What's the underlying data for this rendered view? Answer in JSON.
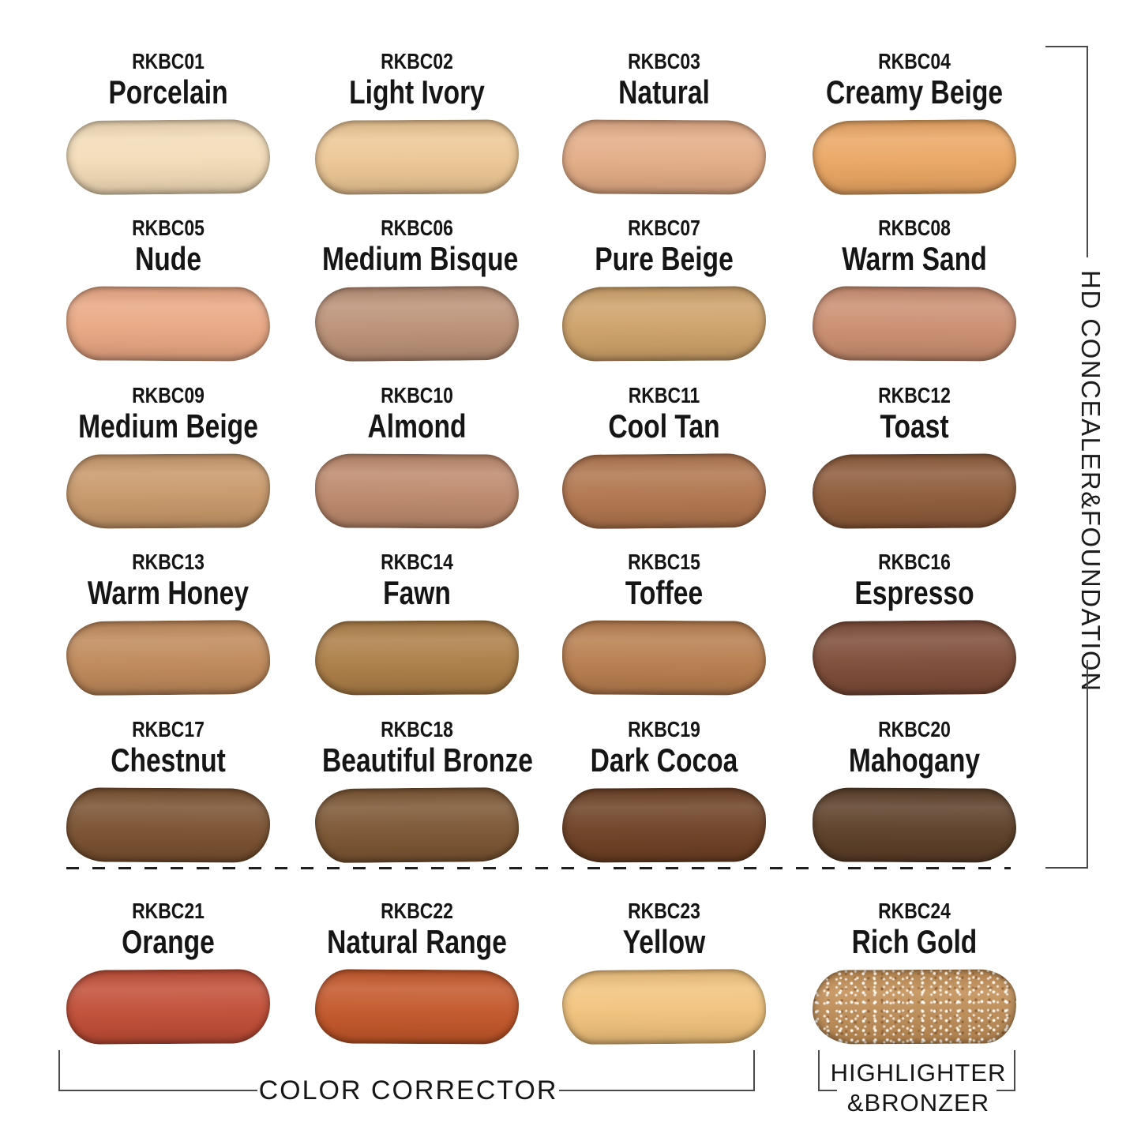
{
  "background": "#ffffff",
  "text_color": "#111111",
  "line_color": "#4a4a4a",
  "sections": {
    "hd": {
      "label": "HD CONCEALER&FOUNDATION"
    },
    "color_corrector": {
      "label": "COLOR CORRECTOR"
    },
    "highlighter": {
      "line1": "HIGHLIGHTER",
      "line2": "&BRONZER"
    }
  },
  "swatches": [
    {
      "code": "RKBC01",
      "name": "Porcelain",
      "color": "#F3DCB8",
      "group": "hd-concealer-foundation"
    },
    {
      "code": "RKBC02",
      "name": "Light Ivory",
      "color": "#EDC795",
      "group": "hd-concealer-foundation"
    },
    {
      "code": "RKBC03",
      "name": "Natural",
      "color": "#E3AC86",
      "group": "hd-concealer-foundation"
    },
    {
      "code": "RKBC04",
      "name": "Creamy Beige",
      "color": "#EBA764",
      "group": "hd-concealer-foundation"
    },
    {
      "code": "RKBC05",
      "name": "Nude",
      "color": "#E9A884",
      "group": "hd-concealer-foundation"
    },
    {
      "code": "RKBC06",
      "name": "Medium Bisque",
      "color": "#BC9278",
      "group": "hd-concealer-foundation"
    },
    {
      "code": "RKBC07",
      "name": "Pure Beige",
      "color": "#CEA26A",
      "group": "hd-concealer-foundation"
    },
    {
      "code": "RKBC08",
      "name": "Warm Sand",
      "color": "#CB8F71",
      "group": "hd-concealer-foundation"
    },
    {
      "code": "RKBC09",
      "name": "Medium Beige",
      "color": "#C8996B",
      "group": "hd-concealer-foundation"
    },
    {
      "code": "RKBC10",
      "name": "Almond",
      "color": "#BD8A6D",
      "group": "hd-concealer-foundation"
    },
    {
      "code": "RKBC11",
      "name": "Cool Tan",
      "color": "#B1764F",
      "group": "hd-concealer-foundation"
    },
    {
      "code": "RKBC12",
      "name": "Toast",
      "color": "#8E5C3B",
      "group": "hd-concealer-foundation"
    },
    {
      "code": "RKBC13",
      "name": "Warm Honey",
      "color": "#C08A5B",
      "group": "hd-concealer-foundation"
    },
    {
      "code": "RKBC14",
      "name": "Fawn",
      "color": "#AD7F48",
      "group": "hd-concealer-foundation"
    },
    {
      "code": "RKBC15",
      "name": "Toffee",
      "color": "#B87E4F",
      "group": "hd-concealer-foundation"
    },
    {
      "code": "RKBC16",
      "name": "Espresso",
      "color": "#7E4D39",
      "group": "hd-concealer-foundation"
    },
    {
      "code": "RKBC17",
      "name": "Chestnut",
      "color": "#7B5231",
      "group": "hd-concealer-foundation"
    },
    {
      "code": "RKBC18",
      "name": "Beautiful Bronze",
      "color": "#7D5734",
      "group": "hd-concealer-foundation"
    },
    {
      "code": "RKBC19",
      "name": "Dark Cocoa",
      "color": "#6F4226",
      "group": "hd-concealer-foundation"
    },
    {
      "code": "RKBC20",
      "name": "Mahogany",
      "color": "#5D4029",
      "group": "hd-concealer-foundation"
    },
    {
      "code": "RKBC21",
      "name": "Orange",
      "color": "#C24F38",
      "group": "color-corrector"
    },
    {
      "code": "RKBC22",
      "name": "Natural Range",
      "color": "#C4582B",
      "group": "color-corrector"
    },
    {
      "code": "RKBC23",
      "name": "Yellow",
      "color": "#F2C37D",
      "group": "color-corrector"
    },
    {
      "code": "RKBC24",
      "name": "Rich Gold",
      "color": "#C28E55, sparkle",
      "group": "highlighter-bronzer",
      "sparkle": true
    }
  ]
}
